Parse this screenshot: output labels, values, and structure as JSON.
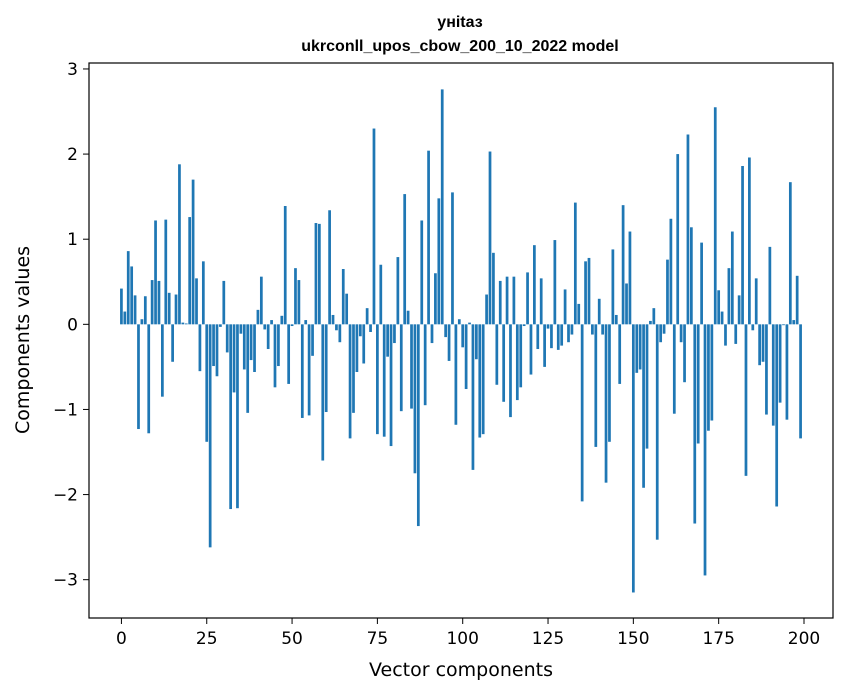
{
  "chart_data": {
    "type": "bar",
    "title": "уніtаз",
    "subtitle": "ukrconll_upos_cbow_200_10_2022 model",
    "xlabel": "Vector components",
    "ylabel": "Components values",
    "xlim": [
      -9.5,
      208.5
    ],
    "ylim": [
      -3.45,
      3.07
    ],
    "xticks": [
      0,
      25,
      50,
      75,
      100,
      125,
      150,
      175,
      200
    ],
    "yticks": [
      -3,
      -2,
      -1,
      0,
      1,
      2,
      3
    ],
    "xtick_labels": [
      "0",
      "25",
      "50",
      "75",
      "100",
      "125",
      "150",
      "175",
      "200"
    ],
    "ytick_labels": [
      "−3",
      "−2",
      "−1",
      "0",
      "1",
      "2",
      "3"
    ],
    "grid": false,
    "bar_color": "#1f77b4",
    "values": [
      0.42,
      0.15,
      0.86,
      0.68,
      0.34,
      -1.23,
      0.06,
      0.33,
      -1.28,
      0.52,
      1.22,
      0.51,
      -0.85,
      1.23,
      0.37,
      -0.44,
      0.35,
      1.88,
      0.02,
      0.01,
      1.26,
      1.7,
      0.54,
      -0.55,
      0.74,
      -1.38,
      -2.62,
      -0.49,
      -0.61,
      -0.03,
      0.51,
      -0.33,
      -2.17,
      -0.8,
      -2.16,
      -0.11,
      -0.53,
      -1.04,
      -0.42,
      -0.56,
      0.17,
      0.56,
      -0.06,
      -0.29,
      0.05,
      -0.74,
      -0.49,
      0.1,
      1.39,
      -0.7,
      -0.02,
      0.66,
      0.52,
      -1.1,
      0.05,
      -1.07,
      -0.37,
      1.19,
      1.18,
      -1.6,
      -1.03,
      1.34,
      0.11,
      -0.07,
      -0.21,
      0.65,
      0.36,
      -1.34,
      -1.04,
      -0.56,
      -0.14,
      -0.46,
      0.19,
      -0.09,
      2.3,
      -1.29,
      0.7,
      -1.32,
      -0.38,
      -1.43,
      -0.22,
      0.79,
      -1.02,
      1.53,
      0.16,
      -0.99,
      -1.75,
      -2.37,
      1.22,
      -0.95,
      2.04,
      -0.22,
      0.6,
      1.48,
      2.76,
      -0.15,
      -0.43,
      1.55,
      -1.18,
      0.06,
      -0.27,
      -0.76,
      0.02,
      -1.71,
      -0.41,
      -1.33,
      -1.29,
      0.35,
      2.03,
      0.84,
      -0.71,
      0.51,
      -0.91,
      0.56,
      -1.09,
      0.56,
      -0.89,
      -0.74,
      -0.02,
      0.61,
      -0.59,
      0.93,
      -0.29,
      0.54,
      -0.5,
      -0.05,
      -0.28,
      0.99,
      -0.3,
      -0.25,
      0.41,
      -0.21,
      -0.12,
      1.43,
      0.24,
      -2.08,
      0.74,
      0.78,
      -0.12,
      -1.44,
      0.3,
      -0.12,
      -1.86,
      -1.38,
      0.88,
      0.11,
      -0.7,
      1.4,
      0.48,
      1.09,
      -3.15,
      -0.57,
      -0.53,
      -1.92,
      -1.46,
      0.04,
      0.19,
      -2.53,
      -0.21,
      -0.11,
      0.76,
      1.24,
      -1.05,
      2.0,
      -0.21,
      -0.68,
      2.23,
      1.14,
      -2.34,
      -1.4,
      0.96,
      -2.95,
      -1.25,
      -1.13,
      2.55,
      0.4,
      0.15,
      -0.25,
      0.66,
      1.09,
      -0.23,
      0.34,
      1.86,
      -1.78,
      1.96,
      -0.07,
      0.54,
      -0.48,
      -0.44,
      -1.06,
      0.91,
      -1.19,
      -2.14,
      -0.92,
      -0.01,
      -1.12,
      1.67,
      0.05,
      0.57,
      -1.34
    ]
  }
}
